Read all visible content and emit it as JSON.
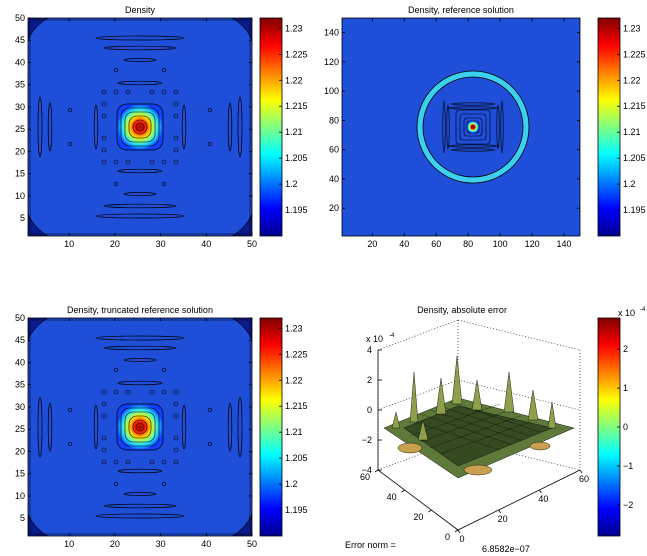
{
  "chart_data": [
    {
      "type": "heatmap",
      "title": "Density",
      "xlim": [
        1,
        50
      ],
      "ylim": [
        1,
        50
      ],
      "x_ticks": [
        "10",
        "20",
        "30",
        "40",
        "50"
      ],
      "y_ticks": [
        "5",
        "10",
        "15",
        "20",
        "25",
        "30",
        "35",
        "40",
        "45",
        "50"
      ],
      "colorbar": {
        "min": 1.19,
        "max": 1.232,
        "ticks": [
          "1.195",
          "1.2",
          "1.205",
          "1.21",
          "1.215",
          "1.22",
          "1.225",
          "1.23"
        ]
      },
      "background_value": 1.191,
      "peak": {
        "x": 25.5,
        "y": 25.5,
        "value": 1.232
      }
    },
    {
      "type": "heatmap",
      "title": "Density, reference solution",
      "xlim": [
        1,
        150
      ],
      "ylim": [
        1,
        150
      ],
      "x_ticks": [
        "20",
        "40",
        "60",
        "80",
        "100",
        "120",
        "140"
      ],
      "y_ticks": [
        "20",
        "40",
        "60",
        "80",
        "100",
        "120",
        "140"
      ],
      "colorbar": {
        "min": 1.19,
        "max": 1.232,
        "ticks": [
          "1.195",
          "1.2",
          "1.205",
          "1.21",
          "1.215",
          "1.22",
          "1.225",
          "1.23"
        ]
      },
      "background_value": 1.191,
      "peak": {
        "x": 75,
        "y": 75,
        "value": 1.232
      }
    },
    {
      "type": "heatmap",
      "title": "Density, truncated reference solution",
      "xlim": [
        1,
        50
      ],
      "ylim": [
        1,
        50
      ],
      "x_ticks": [
        "10",
        "20",
        "30",
        "40",
        "50"
      ],
      "y_ticks": [
        "5",
        "10",
        "15",
        "20",
        "25",
        "30",
        "35",
        "40",
        "45",
        "50"
      ],
      "colorbar": {
        "min": 1.19,
        "max": 1.232,
        "ticks": [
          "1.195",
          "1.2",
          "1.205",
          "1.21",
          "1.215",
          "1.22",
          "1.225",
          "1.23"
        ]
      },
      "background_value": 1.191,
      "peak": {
        "x": 25.5,
        "y": 25.5,
        "value": 1.232
      }
    },
    {
      "type": "surface",
      "title": "Density, absolute error",
      "z_scale_label": "x 10",
      "z_scale_exp": "-4",
      "z_ticks": [
        "4",
        "2",
        "0",
        "−2",
        "−4"
      ],
      "x_ticks": [
        "60",
        "40",
        "20",
        "0"
      ],
      "y_ticks": [
        "0",
        "20",
        "40",
        "60"
      ],
      "zlim": [
        -4,
        4
      ],
      "colorbar": {
        "min": -2.8,
        "max": 2.8,
        "scale_label": "x 10",
        "scale_exp": "-4",
        "ticks": [
          "2",
          "1",
          "0",
          "−1",
          "−2"
        ]
      },
      "error_norm_label": "Error norm =",
      "error_norm_value": "6.8582e−07"
    }
  ]
}
